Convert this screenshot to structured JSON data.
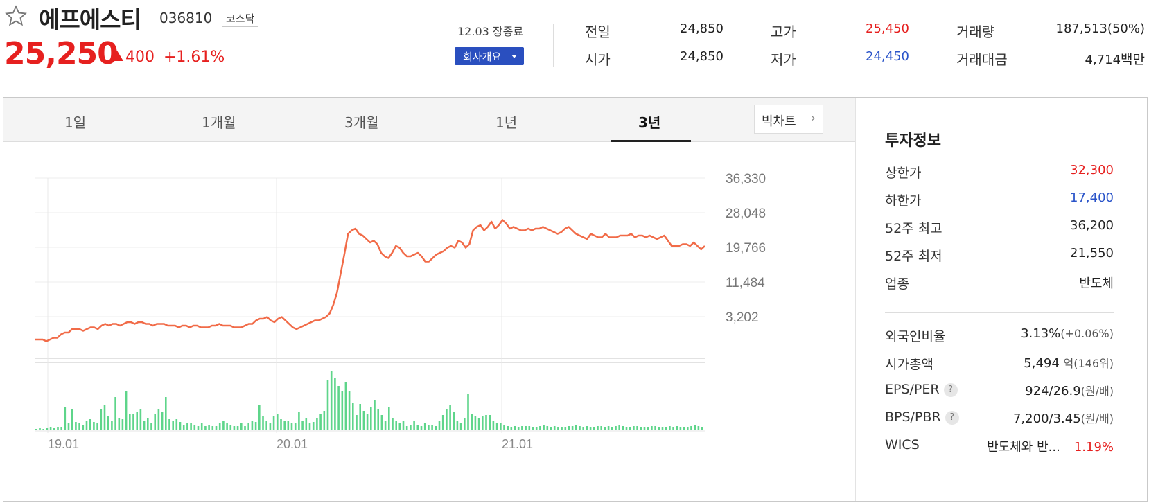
{
  "header": {
    "name": "에프에스티",
    "code": "036810",
    "market": "코스닥",
    "price": "25,250",
    "change": "400",
    "change_pct": "+1.61%",
    "close_time": "12.03 장종료",
    "company_info_button": "회사개요"
  },
  "quote": {
    "prev_label": "전일",
    "prev": "24,850",
    "open_label": "시가",
    "open": "24,850",
    "high_label": "고가",
    "high": "25,450",
    "low_label": "저가",
    "low": "24,450",
    "volume_label": "거래량",
    "volume": "187,513(50%)",
    "amount_label": "거래대금",
    "amount": "4,714",
    "amount_unit": "백만"
  },
  "tabs": [
    "1일",
    "1개월",
    "3개월",
    "1년",
    "3년"
  ],
  "active_tab": "3년",
  "big_chart_button": "빅차트",
  "chart_data": {
    "type": "line",
    "y_ticks": [
      "36,330",
      "28,048",
      "19,766",
      "11,484",
      "3,202"
    ],
    "ylim": [
      3202,
      36330
    ],
    "x_ticks": [
      "19.01",
      "20.01",
      "21.01"
    ],
    "grid": true,
    "price_series": [
      0.1,
      0.1,
      0.1,
      0.09,
      0.1,
      0.11,
      0.11,
      0.13,
      0.14,
      0.14,
      0.16,
      0.16,
      0.16,
      0.15,
      0.16,
      0.17,
      0.17,
      0.16,
      0.18,
      0.19,
      0.18,
      0.19,
      0.19,
      0.18,
      0.19,
      0.2,
      0.2,
      0.19,
      0.2,
      0.2,
      0.19,
      0.19,
      0.18,
      0.19,
      0.19,
      0.19,
      0.18,
      0.18,
      0.18,
      0.17,
      0.18,
      0.18,
      0.17,
      0.18,
      0.18,
      0.17,
      0.17,
      0.17,
      0.18,
      0.18,
      0.19,
      0.18,
      0.18,
      0.18,
      0.17,
      0.17,
      0.17,
      0.18,
      0.19,
      0.19,
      0.21,
      0.22,
      0.22,
      0.23,
      0.21,
      0.2,
      0.22,
      0.23,
      0.21,
      0.19,
      0.17,
      0.16,
      0.17,
      0.18,
      0.19,
      0.2,
      0.21,
      0.21,
      0.22,
      0.23,
      0.25,
      0.3,
      0.37,
      0.48,
      0.59,
      0.71,
      0.73,
      0.74,
      0.71,
      0.7,
      0.68,
      0.66,
      0.67,
      0.65,
      0.6,
      0.58,
      0.57,
      0.6,
      0.64,
      0.63,
      0.6,
      0.58,
      0.58,
      0.59,
      0.6,
      0.58,
      0.55,
      0.55,
      0.57,
      0.59,
      0.6,
      0.61,
      0.63,
      0.64,
      0.63,
      0.67,
      0.66,
      0.63,
      0.65,
      0.73,
      0.75,
      0.76,
      0.73,
      0.75,
      0.78,
      0.74,
      0.76,
      0.79,
      0.77,
      0.74,
      0.75,
      0.74,
      0.73,
      0.73,
      0.74,
      0.73,
      0.74,
      0.74,
      0.75,
      0.74,
      0.73,
      0.72,
      0.71,
      0.72,
      0.74,
      0.75,
      0.73,
      0.71,
      0.7,
      0.69,
      0.68,
      0.71,
      0.7,
      0.69,
      0.69,
      0.71,
      0.69,
      0.69,
      0.69,
      0.7,
      0.7,
      0.7,
      0.71,
      0.69,
      0.7,
      0.7,
      0.69,
      0.7,
      0.69,
      0.68,
      0.69,
      0.7,
      0.67,
      0.64,
      0.64,
      0.64,
      0.65,
      0.65,
      0.64,
      0.66,
      0.64,
      0.62,
      0.64
    ],
    "volume_series": [
      0.02,
      0.03,
      0.02,
      0.03,
      0.04,
      0.03,
      0.04,
      0.05,
      0.34,
      0.1,
      0.3,
      0.12,
      0.1,
      0.08,
      0.14,
      0.16,
      0.12,
      0.1,
      0.3,
      0.36,
      0.2,
      0.14,
      0.48,
      0.18,
      0.16,
      0.56,
      0.24,
      0.24,
      0.26,
      0.3,
      0.14,
      0.18,
      0.1,
      0.24,
      0.3,
      0.26,
      0.48,
      0.16,
      0.14,
      0.16,
      0.12,
      0.08,
      0.1,
      0.1,
      0.08,
      0.06,
      0.1,
      0.06,
      0.08,
      0.06,
      0.06,
      0.1,
      0.14,
      0.1,
      0.08,
      0.06,
      0.06,
      0.1,
      0.06,
      0.1,
      0.14,
      0.12,
      0.36,
      0.2,
      0.14,
      0.1,
      0.2,
      0.24,
      0.16,
      0.14,
      0.14,
      0.1,
      0.1,
      0.26,
      0.14,
      0.18,
      0.1,
      0.12,
      0.18,
      0.24,
      0.28,
      0.72,
      0.86,
      0.76,
      0.64,
      0.56,
      0.7,
      0.56,
      0.4,
      0.22,
      0.38,
      0.28,
      0.24,
      0.34,
      0.44,
      0.3,
      0.22,
      0.14,
      0.34,
      0.18,
      0.14,
      0.1,
      0.14,
      0.06,
      0.08,
      0.14,
      0.08,
      0.06,
      0.1,
      0.08,
      0.08,
      0.06,
      0.14,
      0.22,
      0.3,
      0.36,
      0.26,
      0.14,
      0.1,
      0.18,
      0.52,
      0.24,
      0.2,
      0.18,
      0.2,
      0.22,
      0.22,
      0.14,
      0.1,
      0.1,
      0.08,
      0.06,
      0.04,
      0.06,
      0.04,
      0.06,
      0.06,
      0.06,
      0.04,
      0.04,
      0.06,
      0.08,
      0.06,
      0.04,
      0.06,
      0.04,
      0.04,
      0.04,
      0.06,
      0.06,
      0.08,
      0.06,
      0.04,
      0.06,
      0.04,
      0.04,
      0.06,
      0.06,
      0.04,
      0.06,
      0.04,
      0.06,
      0.08,
      0.06,
      0.04,
      0.04,
      0.06,
      0.06,
      0.04,
      0.04,
      0.04,
      0.06,
      0.06,
      0.04,
      0.04,
      0.04,
      0.06,
      0.04,
      0.06,
      0.04,
      0.04,
      0.04,
      0.06,
      0.08,
      0.06,
      0.04
    ],
    "line_color": "#f16b48",
    "volume_color": "#5ed58a"
  },
  "side": {
    "title": "투자정보",
    "rows_top": [
      {
        "label": "상한가",
        "value": "32,300",
        "color": "red"
      },
      {
        "label": "하한가",
        "value": "17,400",
        "color": "blue"
      },
      {
        "label": "52주 최고",
        "value": "36,200",
        "color": ""
      },
      {
        "label": "52주 최저",
        "value": "21,550",
        "color": ""
      },
      {
        "label": "업종",
        "value": "반도체",
        "color": ""
      }
    ],
    "foreign_ratio_label": "외국인비율",
    "foreign_ratio": "3.13%",
    "foreign_ratio_change": "(+0.06%)",
    "market_cap_label": "시가총액",
    "market_cap": "5,494",
    "market_cap_unit": "억(146위)",
    "eps_per_label": "EPS/PER",
    "eps_per": "924/26.9",
    "eps_per_unit": "(원/배)",
    "bps_pbr_label": "BPS/PBR",
    "bps_pbr": "7,200/3.45",
    "bps_pbr_unit": "(원/배)",
    "wics_label": "WICS",
    "wics": "반도체와 반...",
    "wics_pct": "1.19%"
  }
}
